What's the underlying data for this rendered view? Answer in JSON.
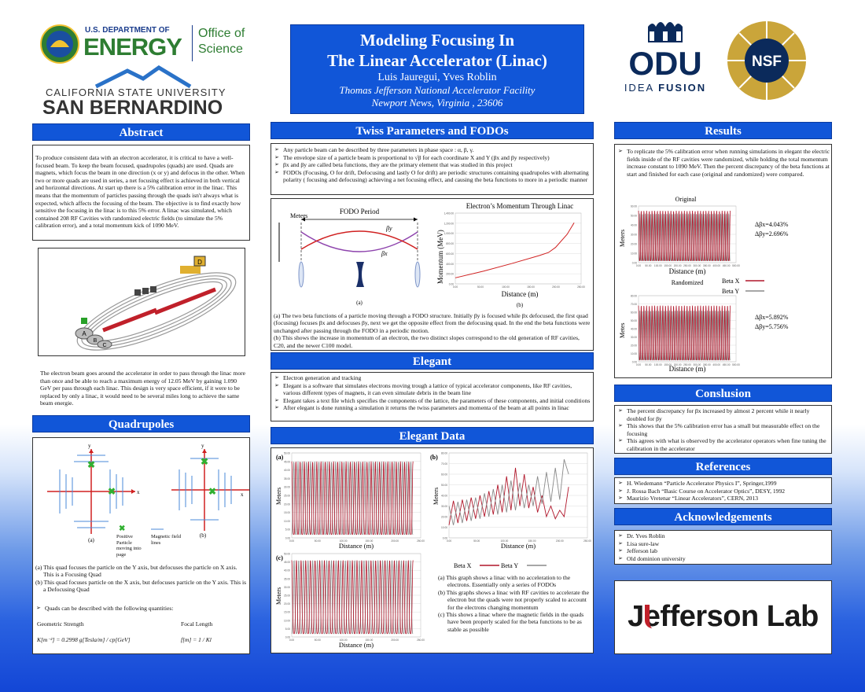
{
  "header": {
    "title_line1": "Modeling Focusing In",
    "title_line2": "The Linear Accelerator (Linac)",
    "authors": "Luis  Jauregui, Yves Roblin",
    "affiliation": "Thomas Jefferson National Accelerator Facility",
    "location": "Newport News, Virginia , 23606"
  },
  "logos": {
    "doe_line1": "U.S. DEPARTMENT OF",
    "doe_line2": "ENERGY",
    "doe_office": "Office of",
    "doe_science": "Science",
    "csusb_line1": "CALIFORNIA STATE UNIVERSITY",
    "csusb_line2": "SAN BERNARDINO",
    "odu": "ODU",
    "odu_tag1": "IDEA",
    "odu_tag2": "FUSION",
    "nsf": "NSF",
    "jlab": "Jefferson Lab"
  },
  "sections": {
    "abstract": "Abstract",
    "quadrupoles": "Quadrupoles",
    "twiss": "Twiss Parameters and FODOs",
    "elegant": "Elegant",
    "elegant_data": "Elegant Data",
    "results": "Results",
    "conclusion": "Conslusion",
    "references": "References",
    "acknowledgements": "Acknowledgements"
  },
  "abstract": {
    "text": "To produce consistent data with an electron accelerator, it is critical to have a well-focused beam. To keep the beam focused, quadrupoles (quads) are used. Quads are magnets, which focus the beam in one direction (x or y) and defocus in the other. When two or more quads are used in series, a net focusing effect is achieved in both vertical and horizontal directions. At start up there is a 5% calibration error in the linac. This means that the momentum of particles passing through the quads isn't always what is expected, which affects the focusing of the beam. The objective is to find exactly how sensitive the focusing in the linac is to this 5% error. A linac was simulated, which contained 208 RF Cavities with randomized electric fields (to simulate the 5% calibration error), and a total momentum kick of 1090 MeV.",
    "accel_caption": "The electron beam goes around the accelerator in order to pass through the linac more than once and be able to reach a maximum energy of 12.05 MeV by gaining 1.090 GeV per pass through each linac. This design is very space efficient, if it were to be replaced by only a linac, it would need to be several miles long to achieve the same beam energie.",
    "hall_labels": [
      "A",
      "B",
      "C",
      "D"
    ]
  },
  "quadrupoles": {
    "panel_a": "(a)",
    "panel_b": "(b)",
    "axis_x": "x",
    "axis_y": "y",
    "legend_particle": "Positive Particle moving into page",
    "legend_field": "Magnetic field lines",
    "caption_a": "(a)  This quad focuses the particle on the Y axis, but defocuses the particle on X axis. This is a Focusing Quad",
    "caption_b": "(b)  This quad focuses particle on the X axis, but defocuses particle on the Y axis. This is a Defocusing Quad",
    "bullet": "Quads can be described with the following quantities:",
    "strength_label": "Geometric Strength",
    "focal_label": "Focal Length",
    "strength_formula": "K[m⁻²] = 0.2998 g[Tesla/m] / cp[GeV]",
    "focal_formula": "f[m] = 1 / Kl"
  },
  "twiss": {
    "bullets": [
      "Any particle beam can be described by three parameters in phase space : α, β, γ.",
      "The envelope size of a particle beam is proportional to √β  for each coordinate  X and Y (βx  and  βy respectively)",
      "βx  and  βy are called beta  functions, they are the primary element that was studied in this project",
      "FODOs (Focusing, O for drift, Defocusing and lastly O for drift) are periodic structures containing quadrupoles with alternating polarity ( focusing and defocusing) achieving a net focusing effect, and causing the beta functions to more in a periodic manner"
    ],
    "fodo_title": "FODO Period",
    "fodo_ylabel": "Meters",
    "fodo_betay": "βy",
    "fodo_betax": "βx",
    "fodo_panel": "(a)",
    "mom_panel": "(b)",
    "caption_a": "(a) The two beta functions of a particle moving through a FODO structure. Initially βy is focused while βx defocused, the first quad (focusing) focuses βx and defocuses βy, next we get the opposite effect from the defocusing quad. In the end the beta functions were unchanged after passing through the FODO in a periodic motion.",
    "caption_b": "(b) This shows the increase in momentum of an electron, the two distinct slopes correspond to the old generation of RF cavities, C20, and the newer C100 model."
  },
  "elegant": {
    "bullets": [
      "Electron generation and tracking",
      "Elegant is a software that simulates electrons moving trough a lattice of typical accelerator components, like RF cavities, various different types of magnets, it can even simulate debris in the beam line",
      "Elegant takes a text file which specifies the components of the lattice, the parameters of these components, and initial conditions",
      "After elegant is done running a simulation it returns the twiss parameters and momenta of the beam at all points in linac"
    ]
  },
  "elegant_data": {
    "panel_a": "(a)",
    "panel_b": "(b)",
    "panel_c": "(c)",
    "ylabel": "Meters",
    "xlabel": "Distance (m)",
    "legend_x": "Beta X",
    "legend_y": "Beta Y",
    "captions": [
      "(a)  This graph shows a linac with no acceleration to the electrons. Essentially only a series of FODOs",
      "(b)  This graphs shows a linac with RF cavities to accelerate the electron but the quads were not properly scaled to account for the electrons changing momentum",
      "(c)  This shows a linac where the magnetic fields in the quads have been properly scaled for the beta functions to be as stable as possible"
    ]
  },
  "results": {
    "text": "To replicate the 5% calibration error when running simulations in elegant the electric fields inside of the RF cavities were randomized, while holding the total momentum increase constant to 1090 MeV. Then the percent discrepancy of the beta functions at start and finished for each case (original and randomized) were compared.",
    "original_title": "Original",
    "randomized_title": "Randomized",
    "ylabel": "Meters",
    "ylabel_2": "Metes",
    "xlabel": "Distance (m)",
    "legend_x": "Beta X",
    "legend_y": "Beta Y",
    "orig_dx": "Δβx=4.043%",
    "orig_dy": "Δβy=2.696%",
    "rand_dx": "Δβx=5.892%",
    "rand_dy": "Δβy=5.756%"
  },
  "conclusion": {
    "bullets": [
      "The percent discrepancy for βx increased by almost 2 percent while it nearly doubled for βy",
      "This shows that the 5% calibration error has a  small but measurable effect on the focusing",
      "This agrees with what is observed by the accelerator operators when fine tuning the calibration in the accelerator"
    ]
  },
  "references": {
    "bullets": [
      "H. Wiedemann “Particle Accelerator Physics I”, Springer,1999",
      "J. Rossa Bach “Basic Course on Accelerator Optics”, DESY, 1992",
      "Maurizio Vretenar “Linear Accelerators”, CERN, 2013"
    ]
  },
  "acknowledgements": {
    "bullets": [
      "Dr. Yves Roblin",
      " Lisa sure-law",
      "Jefferson lab",
      "Old dominion university"
    ]
  },
  "colors": {
    "section_blue": "#1156d8",
    "beta_x": "#b0162a",
    "beta_y": "#8a8a8a",
    "doe_green": "#2e7d32",
    "odu_navy": "#0b2a5b"
  },
  "chart_data": [
    {
      "type": "line",
      "id": "momentum",
      "title": "Electron’s Momentum Through Linac",
      "xlabel": "Distance (m)",
      "ylabel": "Momentum (MeV)",
      "xlim": [
        0,
        270
      ],
      "ylim": [
        0,
        1400
      ],
      "x_ticks": [
        "0.00",
        "50.00",
        "100.00",
        "150.00",
        "200.00",
        "250.00"
      ],
      "y_ticks": [
        "0.00",
        "200.00",
        "400.00",
        "600.00",
        "800.00",
        "1,000.00",
        "1,200.00",
        "1,400.00"
      ],
      "x": [
        0,
        60,
        120,
        180,
        200,
        215,
        240,
        255
      ],
      "y": [
        120,
        250,
        400,
        560,
        620,
        720,
        980,
        1210
      ]
    },
    {
      "type": "line",
      "id": "elegant_a",
      "xlim": [
        0,
        250
      ],
      "ylim": [
        0,
        50
      ],
      "x_ticks": [
        "0.00",
        "50.00",
        "100.00",
        "150.00",
        "200.00",
        "250.00"
      ],
      "y_ticks": [
        "0.00",
        "5.00",
        "10.00",
        "15.00",
        "20.00",
        "25.00",
        "30.00",
        "35.00",
        "40.00",
        "45.00",
        "50.00"
      ],
      "series": [
        {
          "name": "Beta X",
          "cycles": 29,
          "min": 2,
          "max": 45
        },
        {
          "name": "Beta Y",
          "cycles": 29,
          "min": 2,
          "max": 45
        }
      ]
    },
    {
      "type": "line",
      "id": "elegant_b",
      "xlim": [
        0,
        250
      ],
      "ylim": [
        0,
        80
      ],
      "x_ticks": [
        "0.00",
        "50.00",
        "100.00",
        "150.00",
        "200.00",
        "250.00"
      ],
      "y_ticks": [
        "0.00",
        "10.00",
        "20.00",
        "30.00",
        "40.00",
        "50.00",
        "60.00",
        "70.00",
        "80.00"
      ],
      "series": [
        {
          "name": "Beta X",
          "x": [
            0,
            8,
            16,
            24,
            32,
            40,
            48,
            56,
            64,
            72,
            80,
            88,
            96,
            104,
            112,
            120,
            128,
            136,
            144,
            152,
            160,
            168,
            176,
            184,
            192,
            200,
            208,
            216
          ],
          "y": [
            12,
            35,
            14,
            36,
            16,
            38,
            18,
            40,
            20,
            44,
            22,
            50,
            24,
            58,
            26,
            66,
            30,
            60,
            28,
            48,
            24,
            40,
            20,
            30,
            18,
            26,
            20,
            48
          ]
        },
        {
          "name": "Beta Y",
          "x": [
            0,
            8,
            16,
            24,
            32,
            40,
            48,
            56,
            64,
            72,
            80,
            88,
            96,
            104,
            112,
            120,
            128,
            136,
            144,
            152,
            160,
            168,
            176,
            184,
            192,
            200,
            208,
            216
          ],
          "y": [
            30,
            12,
            34,
            14,
            36,
            16,
            38,
            18,
            42,
            20,
            46,
            22,
            50,
            24,
            54,
            26,
            52,
            28,
            50,
            30,
            58,
            32,
            62,
            34,
            66,
            36,
            74,
            60
          ]
        }
      ]
    },
    {
      "type": "line",
      "id": "elegant_c",
      "xlim": [
        0,
        250
      ],
      "ylim": [
        0,
        50
      ],
      "x_ticks": [
        "0.00",
        "50.00",
        "100.00",
        "150.00",
        "200.00",
        "250.00"
      ],
      "y_ticks": [
        "0.00",
        "5.00",
        "10.00",
        "15.00",
        "20.00",
        "25.00",
        "30.00",
        "35.00",
        "40.00",
        "45.00",
        "50.00"
      ],
      "series": [
        {
          "name": "Beta X",
          "cycles": 26,
          "min": 2,
          "max": 46
        },
        {
          "name": "Beta Y",
          "cycles": 26,
          "min": 2,
          "max": 46
        }
      ]
    },
    {
      "type": "line",
      "id": "results_original",
      "title": "Original",
      "xlim": [
        0,
        500
      ],
      "ylim": [
        0,
        60
      ],
      "x_ticks": [
        "0.00",
        "50.00",
        "100.00",
        "150.00",
        "200.00",
        "250.00",
        "300.00",
        "350.00",
        "400.00",
        "450.00",
        "500.00"
      ],
      "y_ticks": [
        "0.00",
        "10.00",
        "20.00",
        "30.00",
        "40.00",
        "50.00",
        "60.00"
      ],
      "series": [
        {
          "name": "Beta X",
          "cycles": 34,
          "min": 2,
          "max": 55
        },
        {
          "name": "Beta Y",
          "cycles": 34,
          "min": 2,
          "max": 52
        }
      ]
    },
    {
      "type": "line",
      "id": "results_randomized",
      "title": "Randomized",
      "xlim": [
        0,
        500
      ],
      "ylim": [
        0,
        80
      ],
      "x_ticks": [
        "0.00",
        "50.00",
        "100.00",
        "150.00",
        "200.00",
        "250.00",
        "300.00",
        "350.00",
        "400.00",
        "450.00",
        "500.00"
      ],
      "y_ticks": [
        "0.00",
        "10.00",
        "20.00",
        "30.00",
        "40.00",
        "50.00",
        "60.00",
        "70.00",
        "80.00"
      ],
      "series": [
        {
          "name": "Beta X",
          "cycles": 34,
          "min": 2,
          "max": 68
        },
        {
          "name": "Beta Y",
          "cycles": 34,
          "min": 2,
          "max": 62
        }
      ]
    }
  ]
}
